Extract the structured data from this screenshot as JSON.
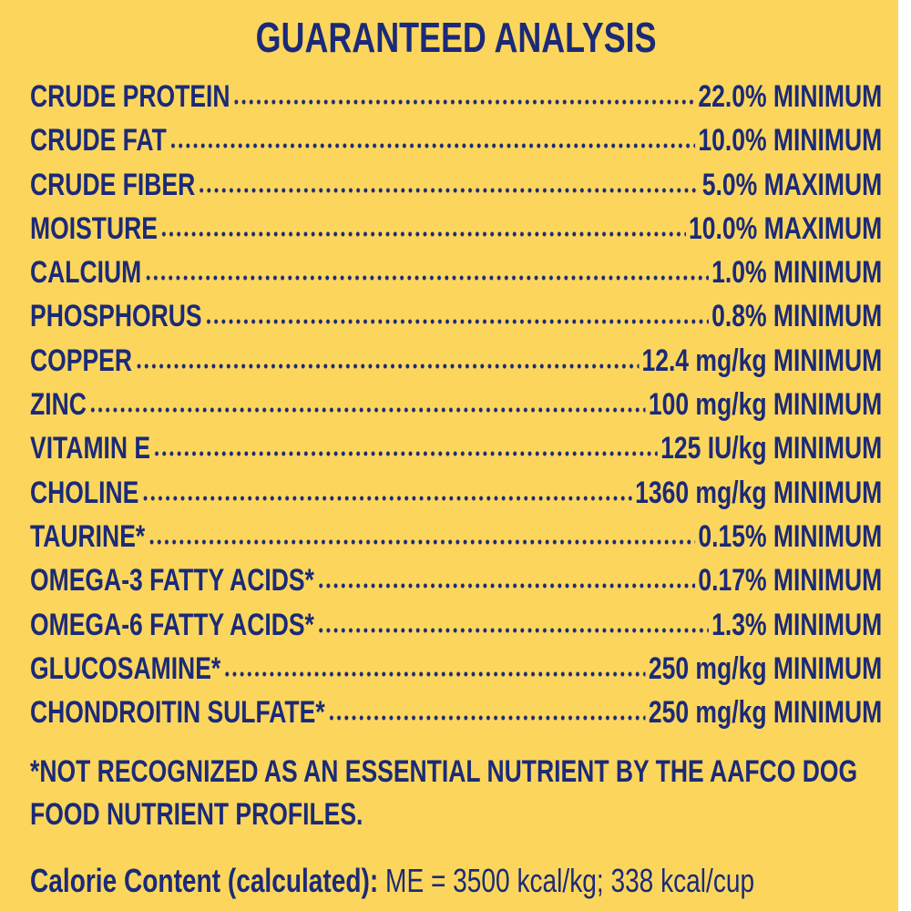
{
  "title": "GUARANTEED ANALYSIS",
  "rows": [
    {
      "label": "CRUDE PROTEIN",
      "value": "22.0% MINIMUM"
    },
    {
      "label": "CRUDE FAT",
      "value": "10.0% MINIMUM"
    },
    {
      "label": "CRUDE FIBER",
      "value": "5.0% MAXIMUM"
    },
    {
      "label": "MOISTURE",
      "value": "10.0% MAXIMUM"
    },
    {
      "label": "CALCIUM",
      "value": "1.0% MINIMUM"
    },
    {
      "label": "PHOSPHORUS",
      "value": "0.8% MINIMUM"
    },
    {
      "label": "COPPER",
      "value": "12.4 mg/kg MINIMUM"
    },
    {
      "label": "ZINC",
      "value": "100 mg/kg MINIMUM"
    },
    {
      "label": "VITAMIN E",
      "value": "125 IU/kg MINIMUM"
    },
    {
      "label": "CHOLINE",
      "value": "1360 mg/kg MINIMUM"
    },
    {
      "label": "TAURINE*",
      "value": "0.15% MINIMUM"
    },
    {
      "label": "OMEGA-3 FATTY ACIDS*",
      "value": "0.17% MINIMUM"
    },
    {
      "label": "OMEGA-6 FATTY ACIDS*",
      "value": "1.3% MINIMUM"
    },
    {
      "label": "GLUCOSAMINE*",
      "value": "250 mg/kg MINIMUM"
    },
    {
      "label": "CHONDROITIN SULFATE*",
      "value": "250 mg/kg MINIMUM"
    }
  ],
  "footnote": "*NOT RECOGNIZED AS AN ESSENTIAL NUTRIENT BY THE AAFCO DOG FOOD NUTRIENT PROFILES.",
  "calorie": {
    "label": "Calorie Content (calculated):",
    "text": "ME = 3500 kcal/kg; 338 kcal/cup"
  }
}
